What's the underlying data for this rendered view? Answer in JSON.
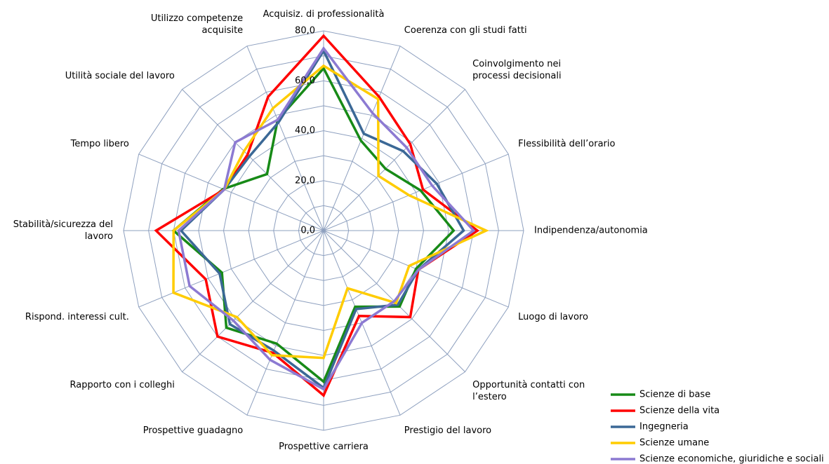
{
  "chart_data": {
    "type": "radar",
    "categories": [
      "Acquisiz. di professionalità",
      "Coerenza con gli studi fatti",
      "Coinvolgimento nei\nprocessi decisionali",
      "Flessibilità dell’orario",
      "Indipendenza/autonomia",
      "Luogo di lavoro",
      "Opportunità contatti con\nl’estero",
      "Prestigio del lavoro",
      "Prospettive carriera",
      "Prospettive guadagno",
      "Rapporto con i colleghi",
      "Rispond. interessi cult.",
      "Stabilità/sicurezza del\nlavoro",
      "Tempo libero",
      "Utilità sociale del lavoro",
      "Utilizzo competenze\nacquisite"
    ],
    "series": [
      {
        "name": "Scienze di base",
        "color": "#178a17",
        "values": [
          65,
          39,
          35,
          42,
          52,
          40,
          43,
          33,
          60.5,
          49,
          55,
          44,
          60,
          43.5,
          32,
          48
        ]
      },
      {
        "name": "Scienze della vita",
        "color": "#ff0000",
        "values": [
          78,
          58,
          49,
          43,
          61.5,
          41,
          49,
          37,
          66,
          53,
          60,
          51,
          67,
          43,
          43,
          58
        ]
      },
      {
        "name": "Ingegneria",
        "color": "#3b6896",
        "values": [
          72,
          42,
          45,
          49,
          56,
          41,
          42,
          34,
          63,
          52,
          53,
          45,
          57,
          43,
          42,
          47
        ]
      },
      {
        "name": "Scienze umane",
        "color": "#ffcc00",
        "values": [
          66,
          57,
          31,
          37,
          65,
          37,
          41,
          25,
          51,
          54,
          49,
          65,
          60,
          43,
          45,
          53
        ]
      },
      {
        "name": "Scienze economiche, giuridiche e sociali",
        "color": "#8c7ad2",
        "values": [
          73,
          51,
          47,
          47,
          60,
          41,
          40,
          40,
          63.5,
          56,
          51,
          58,
          58,
          43,
          50,
          48
        ]
      }
    ],
    "ylim": [
      0,
      80
    ],
    "yticks": [
      {
        "value": 0,
        "label": "0,0"
      },
      {
        "value": 20,
        "label": "20,0"
      },
      {
        "value": 40,
        "label": "40,0"
      },
      {
        "value": 60,
        "label": "60,0"
      },
      {
        "value": 80,
        "label": "80,0"
      }
    ],
    "minor_yticks": [
      10,
      30,
      50,
      70
    ],
    "grid": true,
    "legend": "bottom-right"
  }
}
